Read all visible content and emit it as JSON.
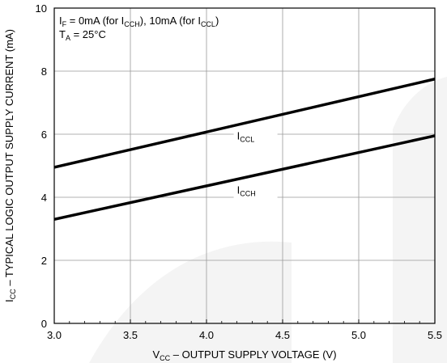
{
  "chart_data": {
    "type": "line",
    "title": "",
    "xlabel": {
      "main": "V",
      "sub": "CC",
      "rest": " – OUTPUT SUPPLY VOLTAGE (V)"
    },
    "ylabel": {
      "main": "I",
      "sub": "CC",
      "rest": " – TYPICAL LOGIC OUTPUT SUPPLY CURRENT (mA)"
    },
    "xlim": [
      3.0,
      5.5
    ],
    "ylim": [
      0,
      10
    ],
    "x_ticks": [
      "3.0",
      "3.5",
      "4.0",
      "4.5",
      "5.0",
      "5.5"
    ],
    "y_ticks": [
      "0",
      "2",
      "4",
      "6",
      "8",
      "10"
    ],
    "grid": true,
    "annotations": {
      "line1": {
        "a": "I",
        "a_sub": "F",
        "b": " = 0mA (for I",
        "b_sub": "CCH",
        "c": "), 10mA (for I",
        "c_sub": "CCL",
        "d": ")"
      },
      "line2": {
        "a": "T",
        "a_sub": "A",
        "b": " = 25°C"
      }
    },
    "series": [
      {
        "name": "I",
        "name_sub": "CCL",
        "x": [
          3.0,
          5.5
        ],
        "y": [
          4.95,
          7.75
        ]
      },
      {
        "name": "I",
        "name_sub": "CCH",
        "x": [
          3.0,
          5.5
        ],
        "y": [
          3.3,
          5.95
        ]
      }
    ],
    "colors": {
      "line": "#000000",
      "grid": "#999999",
      "watermark": "#f3f3f3"
    }
  }
}
